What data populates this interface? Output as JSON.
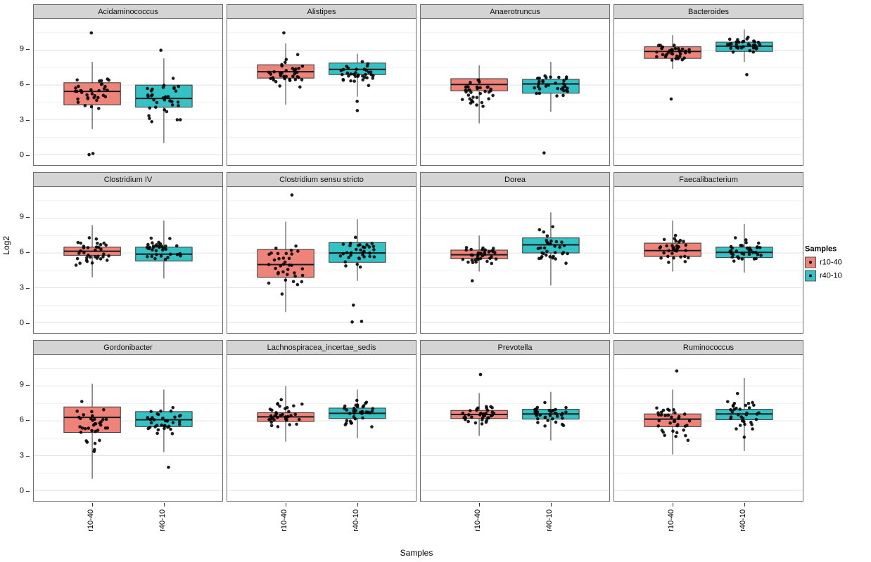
{
  "figure": {
    "ylabel": "Log2",
    "xlabel": "Samples",
    "x_tick_labels": [
      "r10-40",
      "r40-10"
    ],
    "y_ticks": [
      0,
      3,
      6,
      9
    ]
  },
  "legend": {
    "title": "Samples",
    "entries": [
      {
        "label": "r10-40",
        "color": "#EE8379"
      },
      {
        "label": "r40-10",
        "color": "#35C2C5"
      }
    ]
  },
  "chart_data": {
    "type": "boxplot",
    "facet_layout": {
      "rows": 3,
      "cols": 4
    },
    "groups": [
      "r10-40",
      "r40-10"
    ],
    "colors": {
      "r10-40": "#EE8379",
      "r40-10": "#35C2C5"
    },
    "ylabel": "Log2",
    "xlabel": "Samples",
    "legend_title": "Samples",
    "y_ticks": [
      0,
      3,
      6,
      9
    ],
    "ylim": [
      -0.9,
      11.7
    ],
    "grid_minor": [
      1.5,
      4.5,
      7.5,
      10.5
    ],
    "facets": [
      {
        "title": "Acidaminococcus",
        "boxes": [
          {
            "group": "r10-40",
            "low": 2.2,
            "q1": 4.3,
            "median": 5.45,
            "q3": 6.2,
            "high": 8.0,
            "outliers": [
              10.5,
              0.1,
              0.0
            ],
            "n": 34
          },
          {
            "group": "r40-10",
            "low": 1.0,
            "q1": 4.1,
            "median": 4.85,
            "q3": 6.0,
            "high": 8.3,
            "outliers": [
              9.0
            ],
            "n": 34
          }
        ]
      },
      {
        "title": "Alistipes",
        "boxes": [
          {
            "group": "r10-40",
            "low": 4.3,
            "q1": 6.6,
            "median": 7.15,
            "q3": 7.75,
            "high": 9.6,
            "outliers": [
              10.5
            ],
            "n": 36
          },
          {
            "group": "r40-10",
            "low": 5.0,
            "q1": 6.9,
            "median": 7.35,
            "q3": 7.9,
            "high": 8.7,
            "outliers": [
              3.8,
              4.6
            ],
            "n": 34
          }
        ]
      },
      {
        "title": "Anaerotruncus",
        "boxes": [
          {
            "group": "r10-40",
            "low": 2.7,
            "q1": 5.5,
            "median": 6.05,
            "q3": 6.55,
            "high": 7.7,
            "outliers": [],
            "n": 36
          },
          {
            "group": "r40-10",
            "low": 3.7,
            "q1": 5.3,
            "median": 6.1,
            "q3": 6.5,
            "high": 8.0,
            "outliers": [
              0.15
            ],
            "n": 33
          }
        ]
      },
      {
        "title": "Bacteroides",
        "boxes": [
          {
            "group": "r10-40",
            "low": 7.4,
            "q1": 8.3,
            "median": 8.9,
            "q3": 9.3,
            "high": 10.3,
            "outliers": [
              4.8
            ],
            "n": 36
          },
          {
            "group": "r40-10",
            "low": 8.0,
            "q1": 8.9,
            "median": 9.35,
            "q3": 9.7,
            "high": 10.8,
            "outliers": [
              6.9
            ],
            "n": 34
          }
        ]
      },
      {
        "title": "Clostridium IV",
        "boxes": [
          {
            "group": "r10-40",
            "low": 3.9,
            "q1": 5.8,
            "median": 6.15,
            "q3": 6.5,
            "high": 8.4,
            "outliers": [],
            "n": 35
          },
          {
            "group": "r40-10",
            "low": 3.8,
            "q1": 5.3,
            "median": 5.9,
            "q3": 6.5,
            "high": 8.8,
            "outliers": [],
            "n": 35
          }
        ]
      },
      {
        "title": "Clostridium sensu stricto",
        "boxes": [
          {
            "group": "r10-40",
            "low": 0.9,
            "q1": 3.9,
            "median": 5.0,
            "q3": 6.3,
            "high": 8.7,
            "outliers": [
              11.0
            ],
            "n": 35
          },
          {
            "group": "r40-10",
            "low": 3.6,
            "q1": 5.2,
            "median": 6.0,
            "q3": 6.9,
            "high": 8.9,
            "outliers": [
              0.05,
              0.1,
              1.5
            ],
            "n": 34
          }
        ]
      },
      {
        "title": "Dorea",
        "boxes": [
          {
            "group": "r10-40",
            "low": 4.4,
            "q1": 5.5,
            "median": 5.85,
            "q3": 6.25,
            "high": 7.5,
            "outliers": [
              3.6
            ],
            "n": 35
          },
          {
            "group": "r40-10",
            "low": 3.2,
            "q1": 6.0,
            "median": 6.7,
            "q3": 7.3,
            "high": 9.5,
            "outliers": [],
            "n": 33
          }
        ]
      },
      {
        "title": "Faecalibacterium",
        "boxes": [
          {
            "group": "r10-40",
            "low": 4.4,
            "q1": 5.7,
            "median": 6.2,
            "q3": 6.85,
            "high": 8.8,
            "outliers": [],
            "n": 33
          },
          {
            "group": "r40-10",
            "low": 4.3,
            "q1": 5.6,
            "median": 6.05,
            "q3": 6.5,
            "high": 8.5,
            "outliers": [],
            "n": 34
          }
        ]
      },
      {
        "title": "Gordonibacter",
        "boxes": [
          {
            "group": "r10-40",
            "low": 1.0,
            "q1": 5.0,
            "median": 6.3,
            "q3": 7.2,
            "high": 9.2,
            "outliers": [],
            "n": 35
          },
          {
            "group": "r40-10",
            "low": 3.3,
            "q1": 5.5,
            "median": 6.1,
            "q3": 6.8,
            "high": 8.7,
            "outliers": [
              2.0
            ],
            "n": 34
          }
        ]
      },
      {
        "title": "Lachnospiracea_incertae_sedis",
        "boxes": [
          {
            "group": "r10-40",
            "low": 4.2,
            "q1": 5.95,
            "median": 6.35,
            "q3": 6.7,
            "high": 9.0,
            "outliers": [],
            "n": 36
          },
          {
            "group": "r40-10",
            "low": 4.5,
            "q1": 6.2,
            "median": 6.65,
            "q3": 7.1,
            "high": 8.7,
            "outliers": [],
            "n": 35
          }
        ]
      },
      {
        "title": "Prevotella",
        "boxes": [
          {
            "group": "r10-40",
            "low": 4.7,
            "q1": 6.2,
            "median": 6.55,
            "q3": 6.9,
            "high": 8.4,
            "outliers": [
              10.0
            ],
            "n": 35
          },
          {
            "group": "r40-10",
            "low": 4.3,
            "q1": 6.15,
            "median": 6.6,
            "q3": 7.0,
            "high": 8.5,
            "outliers": [],
            "n": 35
          }
        ]
      },
      {
        "title": "Ruminococcus",
        "boxes": [
          {
            "group": "r10-40",
            "low": 3.1,
            "q1": 5.5,
            "median": 6.15,
            "q3": 6.6,
            "high": 8.7,
            "outliers": [
              10.3
            ],
            "n": 35
          },
          {
            "group": "r40-10",
            "low": 3.4,
            "q1": 6.1,
            "median": 6.6,
            "q3": 7.0,
            "high": 9.7,
            "outliers": [],
            "n": 34
          }
        ]
      }
    ]
  }
}
